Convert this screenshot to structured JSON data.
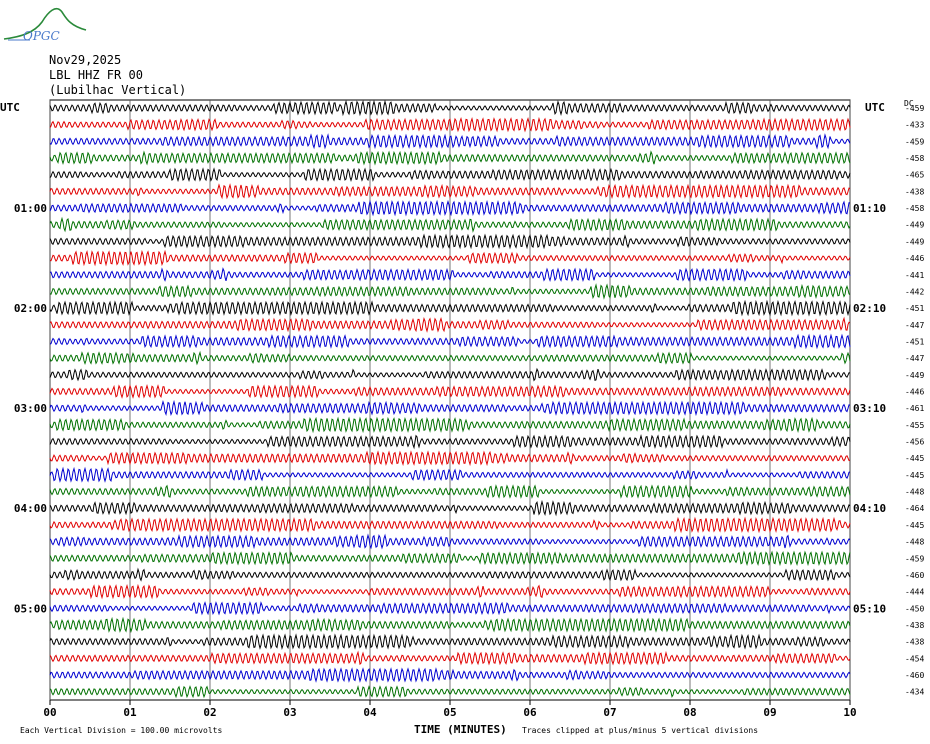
{
  "logo_text": "OPGC",
  "header": {
    "date": "Nov29,2025",
    "station": "LBL HHZ FR 00",
    "location": "(Lubilhac Vertical)"
  },
  "labels": {
    "utc_left": "UTC",
    "utc_right": "UTC",
    "dc_header": "DC"
  },
  "footer": {
    "division_note": "Each Vertical Division =  100.00 microvolts",
    "clip_note": "Traces clipped at plus/minus 5 vertical divisions"
  },
  "chart_data": {
    "type": "line",
    "xlabel": "TIME (MINUTES)",
    "xticks": [
      "00",
      "01",
      "02",
      "03",
      "04",
      "05",
      "06",
      "07",
      "08",
      "09",
      "10"
    ],
    "xlim": [
      0,
      10
    ],
    "trace_colors": [
      "#000000",
      "#e00000",
      "#0000d0",
      "#007000"
    ],
    "left_hour_labels": [
      "01:00",
      "02:00",
      "03:00",
      "04:00",
      "05:00"
    ],
    "right_hour_labels": [
      "01:10",
      "02:10",
      "03:10",
      "04:10",
      "05:10"
    ],
    "dc_offsets": [
      -459,
      -433,
      -459,
      -458,
      -465,
      -438,
      -458,
      -449,
      -449,
      -446,
      -441,
      -442,
      -451,
      -447,
      -451,
      -447,
      -449,
      -446,
      -461,
      -455,
      -456,
      -445,
      -445,
      -448,
      -464,
      -445,
      -448,
      -459,
      -460,
      -444,
      -450,
      -438,
      -438,
      -454,
      -460,
      -434
    ]
  }
}
